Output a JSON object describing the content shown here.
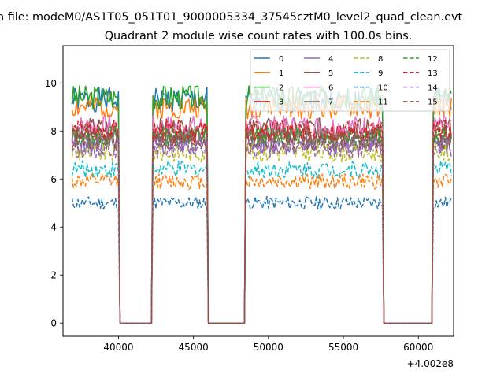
{
  "suptitle": "n file: modeM0/AS1T05_051T01_9000005334_37545cztM0_level2_quad_clean.evt",
  "chart_data": {
    "type": "line",
    "title": "Quadrant 2 module wise count rates with 100.0s bins.",
    "xlabel": "",
    "ylabel": "",
    "x_offset_label": "+4.002e8",
    "xlim": [
      36300,
      62350
    ],
    "ylim": [
      -0.55,
      11.55
    ],
    "xticks": [
      40000,
      45000,
      50000,
      55000,
      60000
    ],
    "xtick_labels": [
      "40000",
      "45000",
      "50000",
      "55000",
      "60000"
    ],
    "yticks": [
      0,
      2,
      4,
      6,
      8,
      10
    ],
    "ytick_labels": [
      "0",
      "2",
      "4",
      "6",
      "8",
      "10"
    ],
    "grid": false,
    "legend_position": "upper right",
    "legend_columns": 4,
    "bin_size": 100,
    "active_intervals": [
      {
        "start": 36900,
        "end": 40000
      },
      {
        "start": 42300,
        "end": 45900
      },
      {
        "start": 48500,
        "end": 51800
      },
      {
        "start": 51900,
        "end": 54900
      },
      {
        "start": 54900,
        "end": 57600
      },
      {
        "start": 61000,
        "end": 62200
      }
    ],
    "series": [
      {
        "name": "0",
        "color": "#1f77b4",
        "dash": "solid",
        "level": 9.3
      },
      {
        "name": "1",
        "color": "#ff7f0e",
        "dash": "solid",
        "level": 9.0
      },
      {
        "name": "2",
        "color": "#2ca02c",
        "dash": "solid",
        "level": 9.4
      },
      {
        "name": "3",
        "color": "#d62728",
        "dash": "solid",
        "level": 7.9
      },
      {
        "name": "4",
        "color": "#9467bd",
        "dash": "solid",
        "level": 7.4
      },
      {
        "name": "5",
        "color": "#8c564b",
        "dash": "solid",
        "level": 8.1
      },
      {
        "name": "6",
        "color": "#e377c2",
        "dash": "solid",
        "level": 8.2
      },
      {
        "name": "7",
        "color": "#7f7f7f",
        "dash": "solid",
        "level": 7.7
      },
      {
        "name": "8",
        "color": "#bcbd22",
        "dash": "dashed",
        "level": 7.1
      },
      {
        "name": "9",
        "color": "#17becf",
        "dash": "dashed",
        "level": 6.4
      },
      {
        "name": "10",
        "color": "#1f77b4",
        "dash": "dashed",
        "level": 5.0
      },
      {
        "name": "11",
        "color": "#ff7f0e",
        "dash": "dashed",
        "level": 5.9
      },
      {
        "name": "12",
        "color": "#2ca02c",
        "dash": "dashed",
        "level": 7.8
      },
      {
        "name": "13",
        "color": "#d62728",
        "dash": "dashed",
        "level": 8.0
      },
      {
        "name": "14",
        "color": "#9467bd",
        "dash": "dashed",
        "level": 7.3
      },
      {
        "name": "15",
        "color": "#8c564b",
        "dash": "dashed",
        "level": 7.6
      }
    ]
  }
}
